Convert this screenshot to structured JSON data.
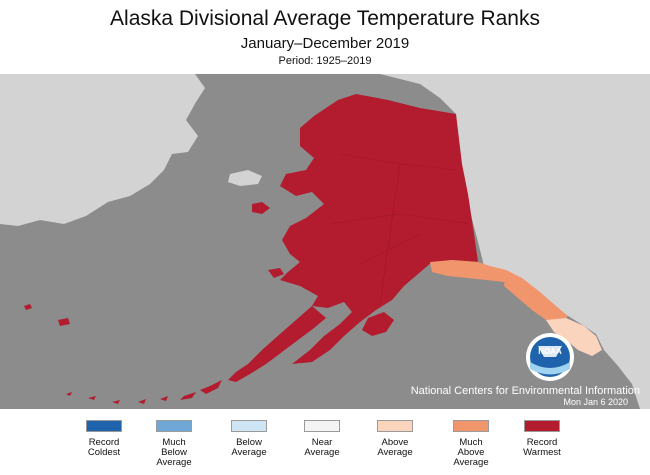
{
  "header": {
    "title": "Alaska Divisional Average Temperature Ranks",
    "subtitle": "January–December 2019",
    "period": "Period: 1925–2019"
  },
  "map": {
    "ocean_color": "#8c8c8c",
    "foreign_land_color": "#d3d3d3",
    "divisions": [
      {
        "region": "Mainland & North Slope",
        "rank_category": "Record Warmest",
        "color": "#b31b2e"
      },
      {
        "region": "Aleutians",
        "rank_category": "Record Warmest",
        "color": "#b31b2e"
      },
      {
        "region": "Kodiak",
        "rank_category": "Record Warmest",
        "color": "#b31b2e"
      },
      {
        "region": "Northeast Gulf Coast",
        "rank_category": "Much Above Average",
        "color": "#f1956d"
      },
      {
        "region": "North Panhandle",
        "rank_category": "Much Above Average",
        "color": "#f1956d"
      },
      {
        "region": "South Panhandle",
        "rank_category": "Above Average",
        "color": "#fbd4be"
      }
    ]
  },
  "credit": {
    "org": "National Centers for Environmental Information",
    "date": "Mon Jan  6 2020",
    "logo_text": "NOAA"
  },
  "legend": [
    {
      "label": "Record\nColdest",
      "color": "#1f63ac"
    },
    {
      "label": "Much\nBelow\nAverage",
      "color": "#6fa8d6"
    },
    {
      "label": "Below\nAverage",
      "color": "#cfe5f3"
    },
    {
      "label": "Near\nAverage",
      "color": "#f4f4f4"
    },
    {
      "label": "Above\nAverage",
      "color": "#fbd4be"
    },
    {
      "label": "Much\nAbove\nAverage",
      "color": "#f1956d"
    },
    {
      "label": "Record\nWarmest",
      "color": "#b31b2e"
    }
  ]
}
